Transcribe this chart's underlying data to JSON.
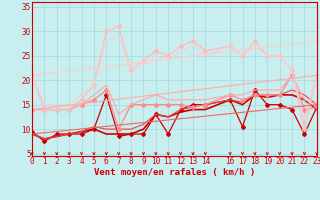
{
  "background_color": "#c8eef0",
  "grid_color": "#aadddd",
  "x_label": "Vent moyen/en rafales ( km/h )",
  "x_ticks": [
    0,
    1,
    2,
    3,
    4,
    5,
    6,
    7,
    8,
    9,
    10,
    11,
    12,
    13,
    14,
    16,
    17,
    18,
    19,
    20,
    21,
    22,
    23
  ],
  "x_tick_pos": [
    0,
    1,
    2,
    3,
    4,
    5,
    6,
    7,
    8,
    9,
    10,
    11,
    12,
    13,
    14,
    16,
    17,
    18,
    19,
    20,
    21,
    22,
    23
  ],
  "y_ticks": [
    5,
    10,
    15,
    20,
    25,
    30,
    35
  ],
  "ylim": [
    4.5,
    36
  ],
  "xlim": [
    0,
    23
  ],
  "lines": [
    {
      "x": [
        0,
        1,
        2,
        3,
        4,
        5,
        6,
        7,
        8,
        9,
        10,
        11,
        12,
        13,
        14,
        16,
        17,
        18,
        19,
        20,
        21,
        22,
        23
      ],
      "y": [
        9.5,
        7.5,
        9,
        9,
        9,
        10,
        17,
        8.5,
        9,
        9,
        13,
        9,
        14,
        15,
        15,
        16,
        10.5,
        18,
        15,
        15,
        14,
        9,
        14.5
      ],
      "color": "#cc0000",
      "lw": 0.9,
      "marker": "D",
      "ms": 2.0
    },
    {
      "x": [
        0,
        1,
        2,
        3,
        4,
        5,
        6,
        7,
        8,
        9,
        10,
        11,
        12,
        13,
        14,
        16,
        17,
        18,
        19,
        20,
        21,
        22,
        23
      ],
      "y": [
        9,
        8,
        8.5,
        9,
        9.5,
        10,
        9,
        9,
        9,
        10,
        13,
        12.5,
        13.5,
        14,
        14,
        16,
        15,
        17,
        16.5,
        17,
        17,
        16,
        14
      ],
      "color": "#cc0000",
      "lw": 1.2,
      "marker": null,
      "ms": 0
    },
    {
      "x": [
        0,
        1,
        2,
        3,
        4,
        5,
        6,
        7,
        8,
        9,
        10,
        11,
        12,
        13,
        14,
        16,
        17,
        18,
        19,
        20,
        21,
        22,
        23
      ],
      "y": [
        9,
        8,
        8.5,
        9,
        9.5,
        10.5,
        10,
        10,
        10,
        11,
        13,
        12.5,
        14,
        14.5,
        15,
        16,
        15.5,
        17,
        17,
        17,
        18,
        17,
        15
      ],
      "color": "#ee4444",
      "lw": 0.8,
      "marker": null,
      "ms": 0
    },
    {
      "x": [
        0,
        1,
        2,
        3,
        4,
        5,
        6,
        7,
        8,
        9,
        10,
        11,
        12,
        13,
        14,
        16,
        17,
        18,
        19,
        20,
        21,
        22,
        23
      ],
      "y": [
        14,
        14,
        14,
        14,
        15,
        16,
        18,
        10,
        15,
        15,
        15,
        15,
        15,
        14.5,
        15,
        17,
        16,
        17,
        17,
        17,
        21,
        14,
        14.5
      ],
      "color": "#ff8888",
      "lw": 0.9,
      "marker": "D",
      "ms": 2.0
    },
    {
      "x": [
        0,
        1,
        2,
        3,
        4,
        5,
        6,
        7,
        8,
        9,
        10,
        11,
        12,
        13,
        14,
        16,
        17,
        18,
        19,
        20,
        21,
        22,
        23
      ],
      "y": [
        14,
        14,
        14,
        14,
        15,
        17,
        19,
        13,
        15,
        16,
        17,
        16,
        16,
        16,
        16,
        17,
        17,
        18,
        18,
        18,
        21,
        16,
        15
      ],
      "color": "#ffaaaa",
      "lw": 0.9,
      "marker": null,
      "ms": 0
    },
    {
      "x": [
        0,
        1,
        2,
        3,
        4,
        5,
        6,
        7,
        8,
        9,
        10,
        11,
        12,
        13,
        14,
        16,
        17,
        18,
        19,
        20,
        21,
        22,
        23
      ],
      "y": [
        21,
        14,
        14,
        14,
        16,
        19,
        30,
        31,
        22,
        24,
        26,
        25,
        27,
        28,
        26,
        27,
        25,
        28,
        25,
        25,
        22,
        10,
        21
      ],
      "color": "#ffbbbb",
      "lw": 0.9,
      "marker": "D",
      "ms": 2.0
    },
    {
      "x": [
        0,
        1,
        2,
        3,
        4,
        5,
        6,
        7,
        8,
        9,
        10,
        11,
        12,
        13,
        14,
        16,
        17,
        18,
        19,
        20,
        21,
        22,
        23
      ],
      "y": [
        21,
        15,
        15,
        15,
        17,
        19,
        28,
        29,
        22,
        23,
        25,
        24,
        26,
        27,
        25,
        27,
        25,
        27,
        25,
        25,
        22,
        12,
        21
      ],
      "color": "#ffcccc",
      "lw": 0.8,
      "marker": null,
      "ms": 0
    },
    {
      "x": [
        0,
        23
      ],
      "y": [
        9,
        15
      ],
      "color": "#ee6666",
      "lw": 0.8,
      "marker": null,
      "ms": 0
    },
    {
      "x": [
        0,
        23
      ],
      "y": [
        14,
        21
      ],
      "color": "#ffaaaa",
      "lw": 0.8,
      "marker": null,
      "ms": 0
    },
    {
      "x": [
        0,
        23
      ],
      "y": [
        21,
        28
      ],
      "color": "#ffcccc",
      "lw": 0.8,
      "marker": null,
      "ms": 0
    }
  ],
  "arrow_color": "#cc0000",
  "axis_fontsize": 6.5,
  "tick_fontsize": 5.5
}
